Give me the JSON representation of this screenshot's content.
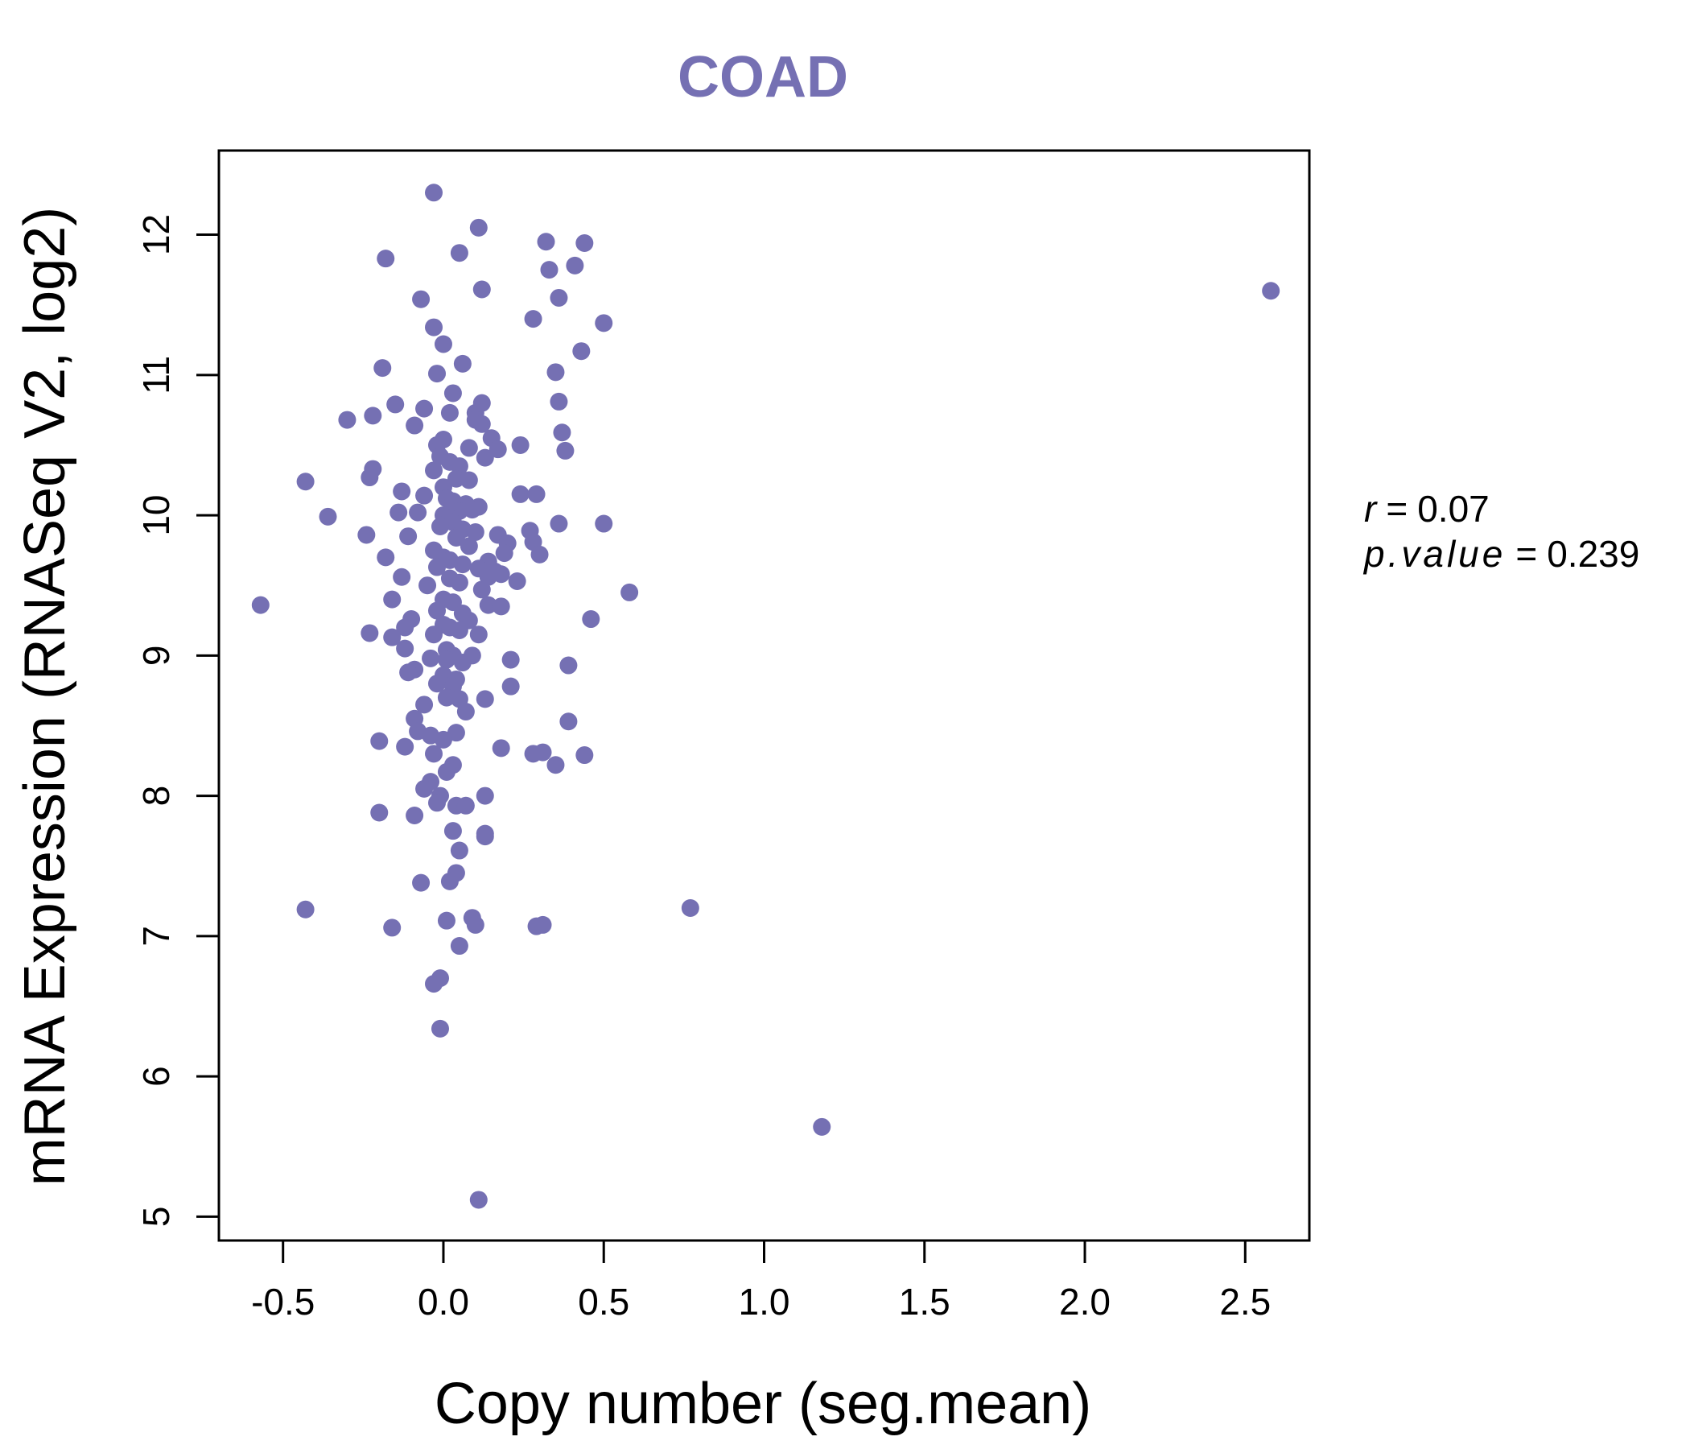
{
  "chart_data": {
    "type": "scatter",
    "title": "COAD",
    "xlabel": "Copy number (seg.mean)",
    "ylabel": "mRNA Expression (RNASeq V2, log2)",
    "xlim": [
      -0.7,
      2.7
    ],
    "ylim": [
      4.83,
      12.6
    ],
    "xticks": [
      -0.5,
      0.0,
      0.5,
      1.0,
      1.5,
      2.0,
      2.5
    ],
    "xtick_labels": [
      "-0.5",
      "0.0",
      "0.5",
      "1.0",
      "1.5",
      "2.0",
      "2.5"
    ],
    "yticks": [
      5,
      6,
      7,
      8,
      9,
      10,
      11,
      12
    ],
    "ytick_labels": [
      "5",
      "6",
      "7",
      "8",
      "9",
      "10",
      "11",
      "12"
    ],
    "point_color": "#7570b3",
    "annotations": {
      "r_label": "r",
      "r_value": "0.07",
      "p_label": "p.value",
      "p_value": "0.239",
      "eq": "="
    },
    "x": [
      -0.03,
      0.11,
      0.32,
      0.44,
      -0.18,
      0.05,
      0.33,
      0.41,
      0.12,
      0.36,
      -0.07,
      2.58,
      0.28,
      -0.03,
      0.5,
      0.0,
      0.43,
      -0.19,
      0.06,
      0.35,
      -0.02,
      0.03,
      0.12,
      0.36,
      -0.15,
      0.1,
      -0.06,
      0.02,
      -0.3,
      -0.22,
      0.1,
      -0.09,
      0.12,
      0.15,
      0.37,
      0.0,
      0.24,
      -0.02,
      0.08,
      0.17,
      0.13,
      0.38,
      -0.01,
      0.02,
      -0.03,
      0.05,
      -0.22,
      0.04,
      -0.43,
      -0.23,
      0.08,
      0.0,
      -0.13,
      0.24,
      0.29,
      -0.06,
      0.01,
      0.03,
      0.07,
      0.11,
      0.05,
      -0.08,
      -0.14,
      0.09,
      0.0,
      0.02,
      -0.36,
      0.36,
      0.5,
      0.03,
      -0.01,
      0.06,
      0.27,
      0.1,
      0.17,
      -0.24,
      -0.11,
      0.2,
      0.28,
      0.04,
      0.08,
      0.3,
      0.19,
      -0.03,
      0.0,
      0.02,
      -0.18,
      0.14,
      0.06,
      -0.02,
      0.11,
      0.16,
      0.18,
      0.14,
      0.23,
      -0.13,
      0.02,
      0.05,
      -0.05,
      0.12,
      0.58,
      -0.57,
      -0.16,
      0.0,
      0.03,
      0.14,
      0.18,
      -0.02,
      0.06,
      0.46,
      -0.1,
      0.08,
      0.0,
      -0.12,
      0.02,
      0.05,
      -0.23,
      -0.16,
      -0.03,
      0.11,
      -0.12,
      0.01,
      0.03,
      0.09,
      -0.04,
      0.01,
      0.06,
      0.21,
      0.39,
      -0.09,
      -0.11,
      0.0,
      0.04,
      0.21,
      -0.02,
      0.03,
      0.01,
      0.05,
      0.13,
      0.07,
      -0.06,
      0.39,
      -0.09,
      -0.08,
      0.04,
      -0.04,
      0.0,
      -0.2,
      0.18,
      -0.12,
      -0.03,
      0.28,
      0.31,
      0.44,
      0.35,
      0.03,
      0.01,
      -0.04,
      -0.06,
      -0.01,
      0.13,
      -0.02,
      0.04,
      0.07,
      -0.09,
      -0.2,
      0.13,
      0.13,
      0.03,
      0.05,
      0.04,
      -0.07,
      0.02,
      0.77,
      -0.43,
      0.09,
      0.01,
      0.1,
      0.29,
      0.31,
      -0.16,
      0.05,
      -0.01,
      -0.03,
      -0.01,
      1.18,
      0.11
    ],
    "y": [
      12.3,
      12.05,
      11.95,
      11.94,
      11.83,
      11.87,
      11.75,
      11.78,
      11.61,
      11.55,
      11.54,
      11.6,
      11.4,
      11.34,
      11.37,
      11.22,
      11.17,
      11.05,
      11.08,
      11.02,
      11.01,
      10.87,
      10.8,
      10.81,
      10.79,
      10.73,
      10.76,
      10.73,
      10.68,
      10.71,
      10.68,
      10.64,
      10.65,
      10.55,
      10.59,
      10.54,
      10.5,
      10.5,
      10.48,
      10.47,
      10.41,
      10.46,
      10.42,
      10.38,
      10.32,
      10.35,
      10.33,
      10.26,
      10.24,
      10.27,
      10.25,
      10.2,
      10.17,
      10.15,
      10.15,
      10.14,
      10.12,
      10.1,
      10.08,
      10.06,
      10.03,
      10.02,
      10.02,
      10.04,
      10.0,
      9.98,
      9.99,
      9.94,
      9.94,
      9.95,
      9.92,
      9.9,
      9.89,
      9.88,
      9.86,
      9.86,
      9.85,
      9.8,
      9.81,
      9.84,
      9.78,
      9.72,
      9.73,
      9.75,
      9.7,
      9.68,
      9.7,
      9.67,
      9.65,
      9.63,
      9.62,
      9.6,
      9.58,
      9.56,
      9.53,
      9.56,
      9.55,
      9.52,
      9.5,
      9.47,
      9.45,
      9.36,
      9.4,
      9.4,
      9.38,
      9.36,
      9.35,
      9.32,
      9.3,
      9.26,
      9.26,
      9.25,
      9.22,
      9.2,
      9.2,
      9.18,
      9.16,
      9.13,
      9.15,
      9.15,
      9.05,
      9.04,
      9.0,
      9.0,
      8.98,
      8.97,
      8.95,
      8.97,
      8.93,
      8.9,
      8.88,
      8.86,
      8.83,
      8.78,
      8.8,
      8.78,
      8.7,
      8.69,
      8.69,
      8.6,
      8.65,
      8.53,
      8.55,
      8.46,
      8.45,
      8.43,
      8.4,
      8.39,
      8.34,
      8.35,
      8.3,
      8.3,
      8.31,
      8.29,
      8.22,
      8.22,
      8.17,
      8.1,
      8.05,
      8.0,
      8.0,
      7.95,
      7.93,
      7.93,
      7.86,
      7.88,
      7.73,
      7.71,
      7.75,
      7.61,
      7.45,
      7.38,
      7.39,
      7.2,
      7.19,
      7.13,
      7.11,
      7.08,
      7.07,
      7.08,
      7.06,
      6.93,
      6.7,
      6.66,
      6.34,
      5.64,
      5.12
    ]
  }
}
